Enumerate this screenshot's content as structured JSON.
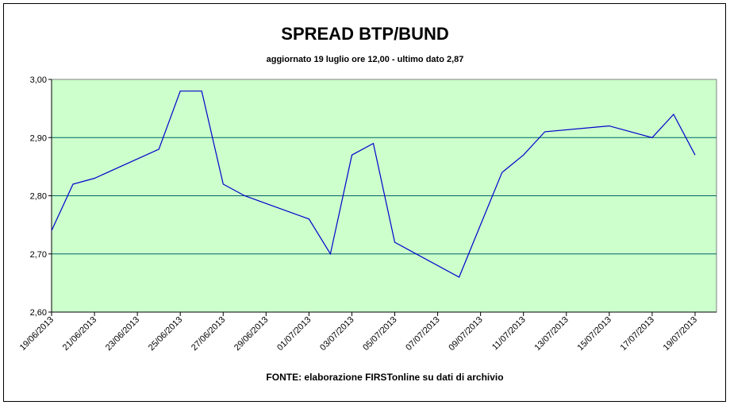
{
  "chart_data": {
    "type": "line",
    "title": "SPREAD BTP/BUND",
    "subtitle": "aggiornato 19 luglio ore 12,00 - ultimo dato 2,87",
    "source": "FONTE: elaborazione FIRSTonline su dati di archivio",
    "x": [
      "19/06/2013",
      "20/06/2013",
      "21/06/2013",
      "24/06/2013",
      "25/06/2013",
      "26/06/2013",
      "27/06/2013",
      "28/06/2013",
      "01/07/2013",
      "02/07/2013",
      "03/07/2013",
      "04/07/2013",
      "05/07/2013",
      "08/07/2013",
      "09/07/2013",
      "10/07/2013",
      "11/07/2013",
      "12/07/2013",
      "15/07/2013",
      "17/07/2013",
      "18/07/2013",
      "19/07/2013"
    ],
    "series": [
      {
        "name": "Spread",
        "color": "#0000cc",
        "values": [
          2.74,
          2.82,
          2.83,
          2.88,
          2.98,
          2.98,
          2.82,
          2.8,
          2.76,
          2.7,
          2.87,
          2.89,
          2.72,
          2.66,
          2.75,
          2.84,
          2.87,
          2.91,
          2.92,
          2.9,
          2.94,
          2.87
        ]
      }
    ],
    "xlim": [
      "19/06/2013",
      "20/07/2013"
    ],
    "xticks": [
      "19/06/2013",
      "21/06/2013",
      "23/06/2013",
      "25/06/2013",
      "27/06/2013",
      "29/06/2013",
      "01/07/2013",
      "03/07/2013",
      "05/07/2013",
      "07/07/2013",
      "09/07/2013",
      "11/07/2013",
      "13/07/2013",
      "15/07/2013",
      "17/07/2013",
      "19/07/2013"
    ],
    "ylim": [
      2.6,
      3.0
    ],
    "yticks": [
      {
        "value": 2.6,
        "label": "2,60"
      },
      {
        "value": 2.7,
        "label": "2,70"
      },
      {
        "value": 2.8,
        "label": "2,80"
      },
      {
        "value": 2.9,
        "label": "2,90"
      },
      {
        "value": 3.0,
        "label": "3,00"
      }
    ],
    "grid": true,
    "background": "#ccffcc",
    "grid_color": "#006666"
  }
}
